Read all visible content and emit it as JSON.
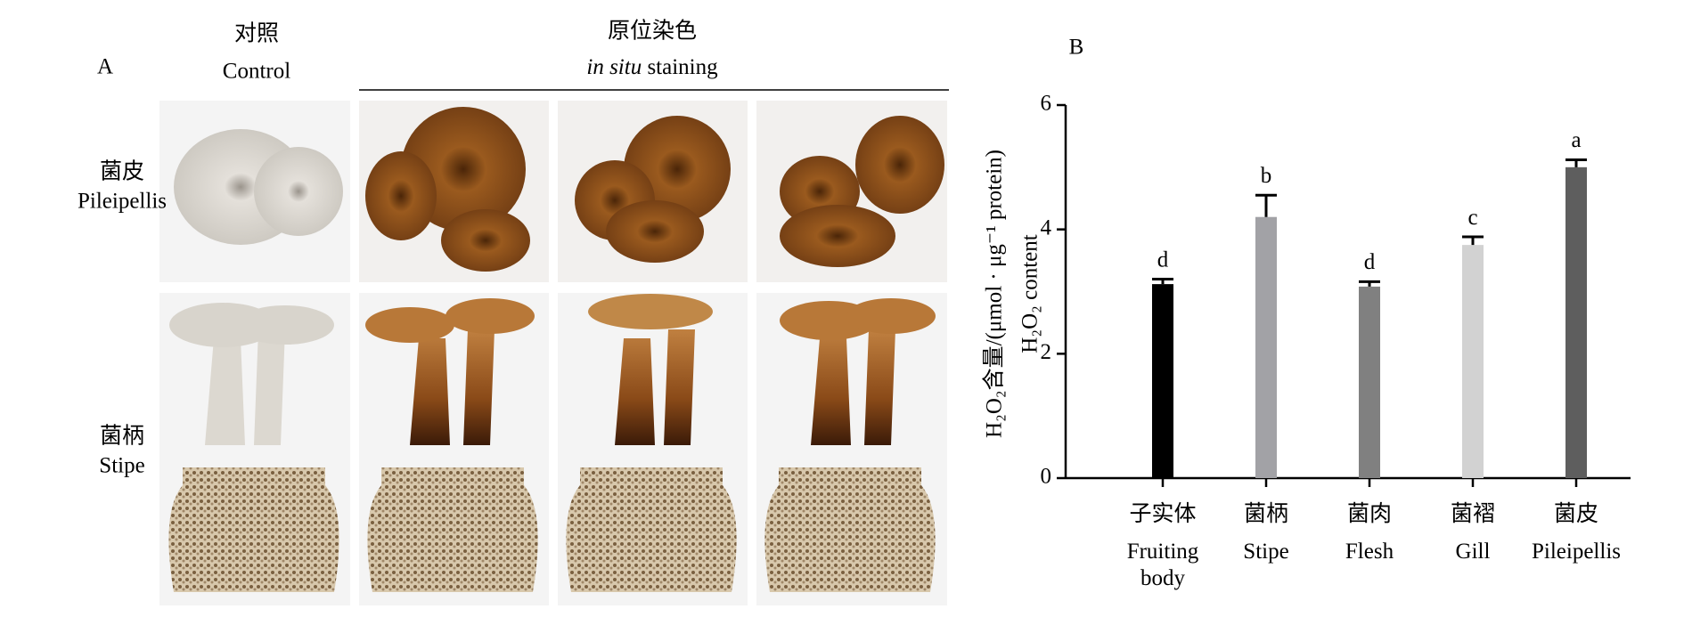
{
  "panel_a": {
    "label": "A",
    "control_zh": "对照",
    "control_en": "Control",
    "staining_zh": "原位染色",
    "staining_en_italic": "in situ",
    "staining_en": "staining",
    "rows": [
      {
        "zh": "菌皮",
        "en": "Pileipellis"
      },
      {
        "zh": "菌柄",
        "en": "Stipe"
      }
    ]
  },
  "chart_data": {
    "type": "bar",
    "panel_label": "B",
    "y_label": "H₂O₂含量/(μmol · μg⁻¹ protein)",
    "y_label_en": "H₂O₂ content",
    "categories": [
      "子实体",
      "菌柄",
      "菌肉",
      "菌褶",
      "菌皮"
    ],
    "categories_en": [
      "Fruiting body",
      "Stipe",
      "Flesh",
      "Gill",
      "Pileipellis"
    ],
    "values": [
      3.12,
      4.2,
      3.08,
      3.75,
      5.0
    ],
    "errors": [
      0.08,
      0.35,
      0.08,
      0.13,
      0.12
    ],
    "significance_letters": [
      "d",
      "b",
      "d",
      "c",
      "a"
    ],
    "colors": [
      "#000000",
      "#a2a2a6",
      "#808080",
      "#d2d2d2",
      "#5e5e5e"
    ],
    "ylim": [
      0,
      6
    ],
    "yticks": [
      0,
      2,
      4,
      6
    ]
  }
}
